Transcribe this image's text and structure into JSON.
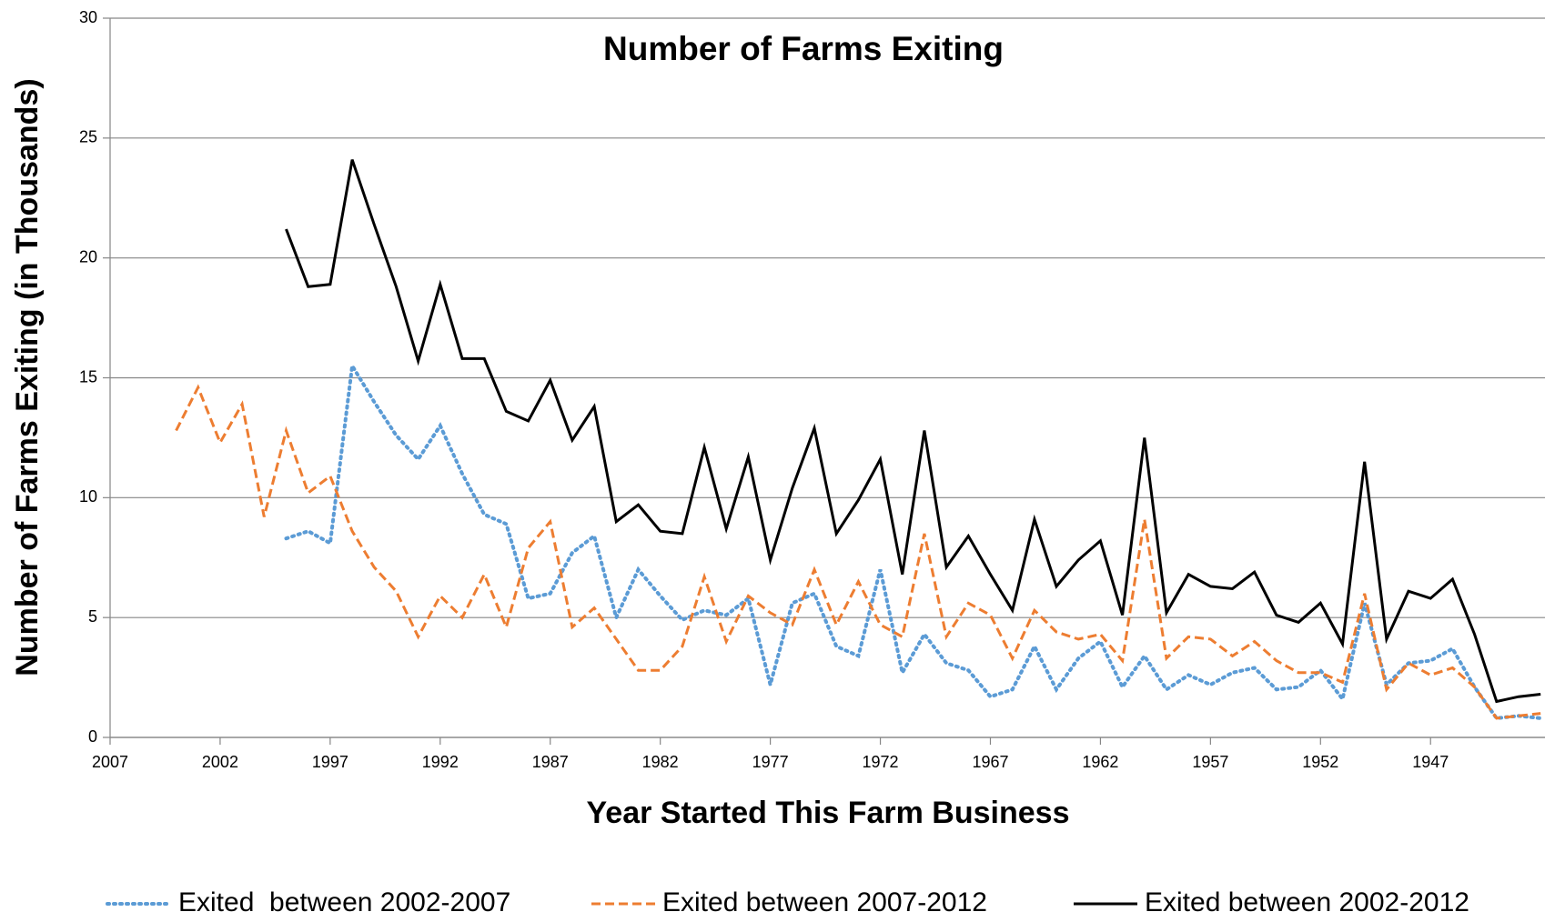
{
  "chart_data": {
    "type": "line",
    "title": "Number of Farms Exiting",
    "x_label": "Year Started This Farm Business",
    "y_label": "Number of Farms Exiting (in Thousands)",
    "x": [
      2004,
      2003,
      2002,
      2001,
      2000,
      1999,
      1998,
      1997,
      1996,
      1995,
      1994,
      1993,
      1992,
      1991,
      1990,
      1989,
      1988,
      1987,
      1986,
      1985,
      1984,
      1983,
      1982,
      1981,
      1980,
      1979,
      1978,
      1977,
      1976,
      1975,
      1974,
      1973,
      1972,
      1971,
      1970,
      1969,
      1968,
      1967,
      1966,
      1965,
      1964,
      1963,
      1962,
      1961,
      1960,
      1959,
      1958,
      1957,
      1956,
      1955,
      1954,
      1953,
      1952,
      1951,
      1950,
      1949,
      1948,
      1947,
      1946,
      1945,
      1944,
      1943,
      1942
    ],
    "xlim": [
      2007,
      1941.8
    ],
    "xticks": [
      2007,
      2002,
      1997,
      1992,
      1987,
      1982,
      1977,
      1972,
      1967,
      1962,
      1957,
      1952,
      1947
    ],
    "ylim": [
      0,
      30
    ],
    "yticks": [
      0,
      5,
      10,
      15,
      20,
      25,
      30
    ],
    "grid": true,
    "legend": "bottom",
    "series": [
      {
        "name": "Exited  between 2002-2007",
        "color": "#5b9bd5",
        "dash": "dotted",
        "values": [
          null,
          null,
          null,
          null,
          null,
          8.3,
          8.6,
          8.1,
          15.5,
          14.0,
          12.6,
          11.6,
          13.0,
          11.0,
          9.3,
          8.9,
          5.8,
          6.0,
          7.7,
          8.4,
          5.0,
          7.0,
          5.9,
          4.9,
          5.3,
          5.1,
          5.8,
          2.2,
          5.6,
          6.0,
          3.8,
          3.4,
          7.0,
          2.7,
          4.3,
          3.1,
          2.8,
          1.7,
          2.0,
          3.8,
          2.0,
          3.3,
          4.0,
          2.1,
          3.4,
          2.0,
          2.6,
          2.2,
          2.7,
          2.9,
          2.0,
          2.1,
          2.8,
          1.6,
          5.6,
          2.2,
          3.1,
          3.2,
          3.7,
          2.1,
          0.8,
          0.9,
          0.8
        ]
      },
      {
        "name": "Exited between 2007-2012",
        "color": "#ed7d31",
        "dash": "dashed",
        "values": [
          12.8,
          14.6,
          12.3,
          13.9,
          9.2,
          12.8,
          10.2,
          10.9,
          8.6,
          7.1,
          6.1,
          4.2,
          5.9,
          5.0,
          6.8,
          4.6,
          7.9,
          9.0,
          4.6,
          5.4,
          4.1,
          2.8,
          2.8,
          3.8,
          6.7,
          4.0,
          5.9,
          5.2,
          4.7,
          7.0,
          4.7,
          6.5,
          4.7,
          4.2,
          8.5,
          4.2,
          5.6,
          5.1,
          3.3,
          5.3,
          4.4,
          4.1,
          4.3,
          3.2,
          9.1,
          3.3,
          4.2,
          4.1,
          3.4,
          4.0,
          3.2,
          2.7,
          2.7,
          2.3,
          6.0,
          2.0,
          3.1,
          2.6,
          2.9,
          2.1,
          0.8,
          0.9,
          1.0
        ]
      },
      {
        "name": "Exited between 2002-2012",
        "color": "#000000",
        "dash": "solid",
        "values": [
          null,
          null,
          null,
          null,
          null,
          21.2,
          18.8,
          18.9,
          24.1,
          21.4,
          18.8,
          15.7,
          18.9,
          15.8,
          15.8,
          13.6,
          13.2,
          14.9,
          12.4,
          13.8,
          9.0,
          9.7,
          8.6,
          8.5,
          12.1,
          8.7,
          11.7,
          7.4,
          10.4,
          12.9,
          8.5,
          9.9,
          11.6,
          6.8,
          12.8,
          7.1,
          8.4,
          6.8,
          5.3,
          9.1,
          6.3,
          7.4,
          8.2,
          5.1,
          12.5,
          5.2,
          6.8,
          6.3,
          6.2,
          6.9,
          5.1,
          4.8,
          5.6,
          3.9,
          11.5,
          4.1,
          6.1,
          5.8,
          6.6,
          4.3,
          1.5,
          1.7,
          1.8
        ]
      }
    ]
  }
}
